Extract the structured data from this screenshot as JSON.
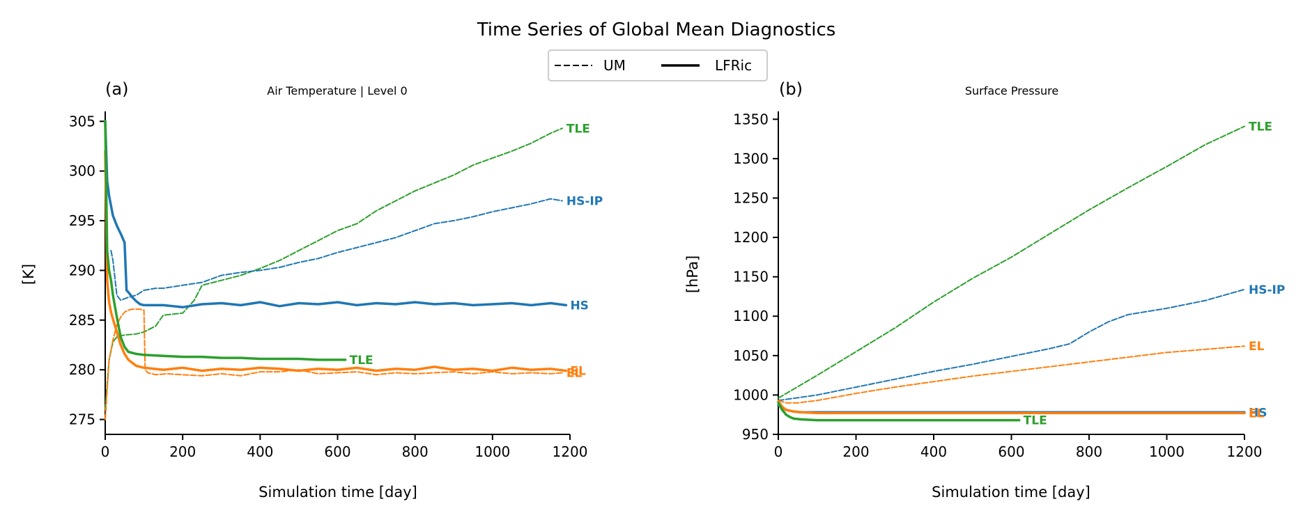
{
  "figure": {
    "title": "Time Series of Global Mean Diagnostics",
    "legend": {
      "items": [
        {
          "label": "UM",
          "style": "dashed"
        },
        {
          "label": "LFRic",
          "style": "solid"
        }
      ]
    }
  },
  "chart_data": [
    {
      "type": "line",
      "panel_label": "(a)",
      "title": "Air Temperature | Level 0",
      "xlabel": "Simulation time [day]",
      "ylabel": "[K]",
      "xlim": [
        0,
        1200
      ],
      "ylim": [
        273.5,
        306
      ],
      "xticks": [
        0,
        200,
        400,
        600,
        800,
        1000,
        1200
      ],
      "yticks": [
        275,
        280,
        285,
        290,
        295,
        300,
        305
      ],
      "grid": false,
      "series": [
        {
          "model": "UM",
          "color": "#2ca02c",
          "style": "dashed",
          "width": 2,
          "end_label": "TLE",
          "x": [
            0,
            10,
            20,
            30,
            50,
            80,
            100,
            130,
            150,
            200,
            230,
            250,
            300,
            350,
            400,
            450,
            500,
            550,
            600,
            650,
            700,
            750,
            800,
            850,
            900,
            950,
            1000,
            1050,
            1100,
            1150,
            1180
          ],
          "y": [
            276,
            281,
            282.8,
            283.3,
            283.5,
            283.6,
            283.8,
            284.4,
            285.5,
            285.7,
            287,
            288.5,
            289,
            289.5,
            290.2,
            291,
            292,
            293,
            294,
            294.7,
            296,
            297,
            298,
            298.8,
            299.6,
            300.6,
            301.3,
            302,
            302.8,
            303.8,
            304.3
          ]
        },
        {
          "model": "UM",
          "color": "#1f77b4",
          "style": "dashed",
          "width": 2,
          "end_label": "HS-IP",
          "x": [
            15,
            20,
            30,
            40,
            60,
            80,
            100,
            130,
            150,
            200,
            250,
            300,
            350,
            400,
            450,
            500,
            550,
            600,
            650,
            700,
            750,
            800,
            850,
            900,
            950,
            1000,
            1050,
            1100,
            1150,
            1180
          ],
          "y": [
            292,
            291,
            287.5,
            287,
            287.3,
            287.5,
            288,
            288.2,
            288.2,
            288.5,
            288.8,
            289.5,
            289.8,
            290,
            290.3,
            290.8,
            291.2,
            291.8,
            292.3,
            292.8,
            293.3,
            294,
            294.7,
            295,
            295.4,
            295.9,
            296.3,
            296.7,
            297.2,
            297
          ]
        },
        {
          "model": "UM",
          "color": "#ff7f0e",
          "style": "dashed",
          "width": 2,
          "end_label": "EL",
          "x": [
            0,
            10,
            20,
            30,
            40,
            50,
            60,
            70,
            80,
            90,
            100,
            103,
            110,
            130,
            160,
            200,
            250,
            300,
            350,
            400,
            450,
            500,
            550,
            600,
            650,
            700,
            750,
            800,
            850,
            900,
            950,
            1000,
            1050,
            1100,
            1150,
            1180
          ],
          "y": [
            275,
            281,
            283,
            284.5,
            285.3,
            285.8,
            286,
            286.1,
            286.1,
            286.1,
            286,
            280,
            279.7,
            279.5,
            279.6,
            279.5,
            279.4,
            279.6,
            279.4,
            279.8,
            279.8,
            280,
            279.6,
            279.7,
            279.8,
            279.5,
            279.7,
            279.6,
            279.7,
            279.8,
            279.6,
            279.8,
            279.6,
            279.7,
            279.6,
            279.7
          ]
        },
        {
          "model": "LFRic",
          "color": "#1f77b4",
          "style": "solid",
          "width": 3.5,
          "end_label": "HS",
          "x": [
            0,
            5,
            10,
            15,
            20,
            30,
            40,
            50,
            55,
            60,
            70,
            80,
            90,
            100,
            150,
            200,
            250,
            300,
            350,
            400,
            450,
            500,
            550,
            600,
            650,
            700,
            750,
            800,
            850,
            900,
            950,
            1000,
            1050,
            1100,
            1150,
            1190
          ],
          "y": [
            305,
            299,
            297.5,
            296.5,
            295.5,
            294.5,
            293.7,
            292.8,
            288,
            287.8,
            287.3,
            286.9,
            286.6,
            286.5,
            286.5,
            286.3,
            286.6,
            286.7,
            286.5,
            286.8,
            286.4,
            286.7,
            286.6,
            286.8,
            286.5,
            286.7,
            286.6,
            286.8,
            286.6,
            286.7,
            286.5,
            286.6,
            286.7,
            286.5,
            286.7,
            286.5
          ]
        },
        {
          "model": "LFRic",
          "color": "#ff7f0e",
          "style": "solid",
          "width": 3.5,
          "end_label": "EL",
          "x": [
            0,
            5,
            10,
            15,
            20,
            30,
            40,
            50,
            60,
            70,
            80,
            90,
            100,
            150,
            200,
            250,
            300,
            350,
            400,
            450,
            500,
            550,
            600,
            650,
            700,
            750,
            800,
            850,
            900,
            950,
            1000,
            1050,
            1100,
            1150,
            1190
          ],
          "y": [
            302,
            289,
            286.8,
            285.8,
            285.1,
            283.8,
            282.5,
            281.6,
            281,
            280.7,
            280.4,
            280.3,
            280.2,
            280,
            280.2,
            279.9,
            280.1,
            280,
            280.2,
            280.1,
            279.9,
            280.1,
            280,
            280.2,
            279.9,
            280.1,
            280,
            280.3,
            280,
            280.1,
            279.9,
            280.2,
            280,
            280.1,
            279.9
          ]
        },
        {
          "model": "LFRic",
          "color": "#2ca02c",
          "style": "solid",
          "width": 3.5,
          "end_label": "TLE",
          "x": [
            0,
            5,
            10,
            15,
            20,
            30,
            40,
            50,
            60,
            80,
            100,
            150,
            200,
            250,
            300,
            350,
            400,
            450,
            500,
            550,
            600,
            620
          ],
          "y": [
            305,
            292,
            290,
            289,
            287.5,
            285.3,
            283.3,
            282.3,
            281.8,
            281.6,
            281.5,
            281.4,
            281.3,
            281.3,
            281.2,
            281.2,
            281.1,
            281.1,
            281.1,
            281,
            281,
            281
          ]
        }
      ]
    },
    {
      "type": "line",
      "panel_label": "(b)",
      "title": "Surface Pressure",
      "xlabel": "Simulation time [day]",
      "ylabel": "[hPa]",
      "xlim": [
        0,
        1200
      ],
      "ylim": [
        950,
        1360
      ],
      "xticks": [
        0,
        200,
        400,
        600,
        800,
        1000,
        1200
      ],
      "yticks": [
        950,
        1000,
        1050,
        1100,
        1150,
        1200,
        1250,
        1300,
        1350
      ],
      "grid": false,
      "series": [
        {
          "model": "UM",
          "color": "#2ca02c",
          "style": "dashed",
          "width": 2,
          "end_label": "TLE",
          "x": [
            0,
            100,
            200,
            300,
            400,
            500,
            600,
            700,
            800,
            900,
            1000,
            1100,
            1200
          ],
          "y": [
            996,
            1025,
            1055,
            1085,
            1118,
            1148,
            1175,
            1205,
            1235,
            1263,
            1290,
            1318,
            1341
          ]
        },
        {
          "model": "UM",
          "color": "#1f77b4",
          "style": "dashed",
          "width": 2,
          "end_label": "HS-IP",
          "x": [
            0,
            100,
            200,
            300,
            400,
            500,
            600,
            700,
            750,
            800,
            850,
            900,
            1000,
            1100,
            1200
          ],
          "y": [
            993,
            1000,
            1010,
            1020,
            1030,
            1039,
            1049,
            1059,
            1065,
            1080,
            1093,
            1102,
            1110,
            1120,
            1134
          ]
        },
        {
          "model": "UM",
          "color": "#ff7f0e",
          "style": "dashed",
          "width": 2,
          "end_label": "EL",
          "x": [
            0,
            20,
            50,
            100,
            200,
            300,
            400,
            500,
            600,
            700,
            800,
            900,
            1000,
            1100,
            1200
          ],
          "y": [
            993,
            990,
            990,
            993,
            1002,
            1010,
            1017,
            1024,
            1030,
            1036,
            1042,
            1048,
            1054,
            1058,
            1062
          ]
        },
        {
          "model": "LFRic",
          "color": "#1f77b4",
          "style": "solid",
          "width": 3.5,
          "end_label": "HS",
          "x": [
            0,
            10,
            20,
            40,
            60,
            100,
            200,
            400,
            600,
            800,
            1000,
            1200
          ],
          "y": [
            987,
            984,
            981,
            979,
            978,
            978,
            978,
            978,
            978,
            978,
            978,
            978
          ]
        },
        {
          "model": "LFRic",
          "color": "#ff7f0e",
          "style": "solid",
          "width": 3.5,
          "end_label": "EL",
          "x": [
            0,
            10,
            20,
            40,
            60,
            100,
            200,
            400,
            600,
            800,
            1000,
            1200
          ],
          "y": [
            992,
            985,
            981,
            979,
            978,
            977,
            977,
            977,
            977,
            977,
            977,
            977
          ]
        },
        {
          "model": "LFRic",
          "color": "#2ca02c",
          "style": "solid",
          "width": 3.5,
          "end_label": "TLE",
          "x": [
            0,
            10,
            20,
            30,
            40,
            60,
            100,
            200,
            400,
            600,
            620
          ],
          "y": [
            990,
            981,
            975,
            972,
            970,
            969,
            968,
            968,
            968,
            968,
            968
          ]
        }
      ]
    }
  ]
}
